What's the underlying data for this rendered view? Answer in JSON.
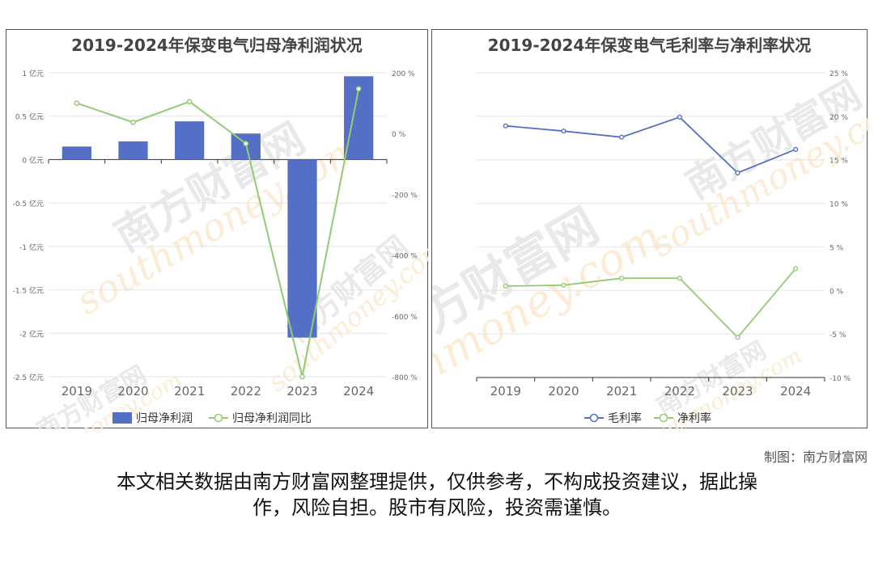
{
  "chart_data": [
    {
      "type": "bar+line",
      "title": "2019-2024年保变电气归母净利润状况",
      "categories": [
        "2019",
        "2020",
        "2021",
        "2022",
        "2023",
        "2024"
      ],
      "series": [
        {
          "name": "归母净利润",
          "type": "bar",
          "axis": "left",
          "color": "#5470c6",
          "values": [
            0.15,
            0.21,
            0.44,
            0.3,
            -2.05,
            0.96
          ]
        },
        {
          "name": "归母净利润同比",
          "type": "line",
          "axis": "right",
          "color": "#91cc75",
          "values": [
            100,
            37,
            105,
            -33,
            -800,
            147
          ]
        }
      ],
      "left_axis": {
        "ticks": [
          1,
          0.5,
          0,
          -0.5,
          -1,
          -1.5,
          -2,
          -2.5
        ],
        "tick_labels": [
          "1 亿元",
          "0.5 亿元",
          "0 亿元",
          "-0.5 亿元",
          "-1 亿元",
          "-1.5 亿元",
          "-2 亿元",
          "-2.5 亿元"
        ],
        "range": [
          -2.5,
          1
        ]
      },
      "right_axis": {
        "ticks": [
          200,
          0,
          -200,
          -400,
          -600,
          -800
        ],
        "tick_labels": [
          "200 %",
          "0 %",
          "-200 %",
          "-400 %",
          "-600 %",
          "-800 %"
        ],
        "range": [
          -800,
          200
        ]
      },
      "grid": true,
      "legend": "bottom"
    },
    {
      "type": "line",
      "title": "2019-2024年保变电气毛利率与净利率状况",
      "categories": [
        "2019",
        "2020",
        "2021",
        "2022",
        "2023",
        "2024"
      ],
      "series": [
        {
          "name": "毛利率",
          "color": "#5470c6",
          "values": [
            18.9,
            18.3,
            17.6,
            19.9,
            13.5,
            16.2
          ]
        },
        {
          "name": "净利率",
          "color": "#91cc75",
          "values": [
            0.5,
            0.6,
            1.4,
            1.4,
            -5.4,
            2.5
          ]
        }
      ],
      "right_axis": {
        "ticks": [
          25,
          20,
          15,
          10,
          5,
          0,
          -5,
          -10
        ],
        "tick_labels": [
          "25 %",
          "20 %",
          "15 %",
          "10 %",
          "5 %",
          "0 %",
          "-5 %",
          "-10 %"
        ],
        "range": [
          -10,
          25
        ]
      },
      "grid": true,
      "legend": "bottom"
    }
  ],
  "watermark": {
    "cn": "南方财富网",
    "en": "southmoney.com"
  },
  "credit": "制图：南方财富网",
  "disclaimer_line1": "本文相关数据由南方财富网整理提供，仅供参考，不构成投资建议，据此操",
  "disclaimer_line2": "作，风险自担。股市有风险，投资需谨慎。"
}
